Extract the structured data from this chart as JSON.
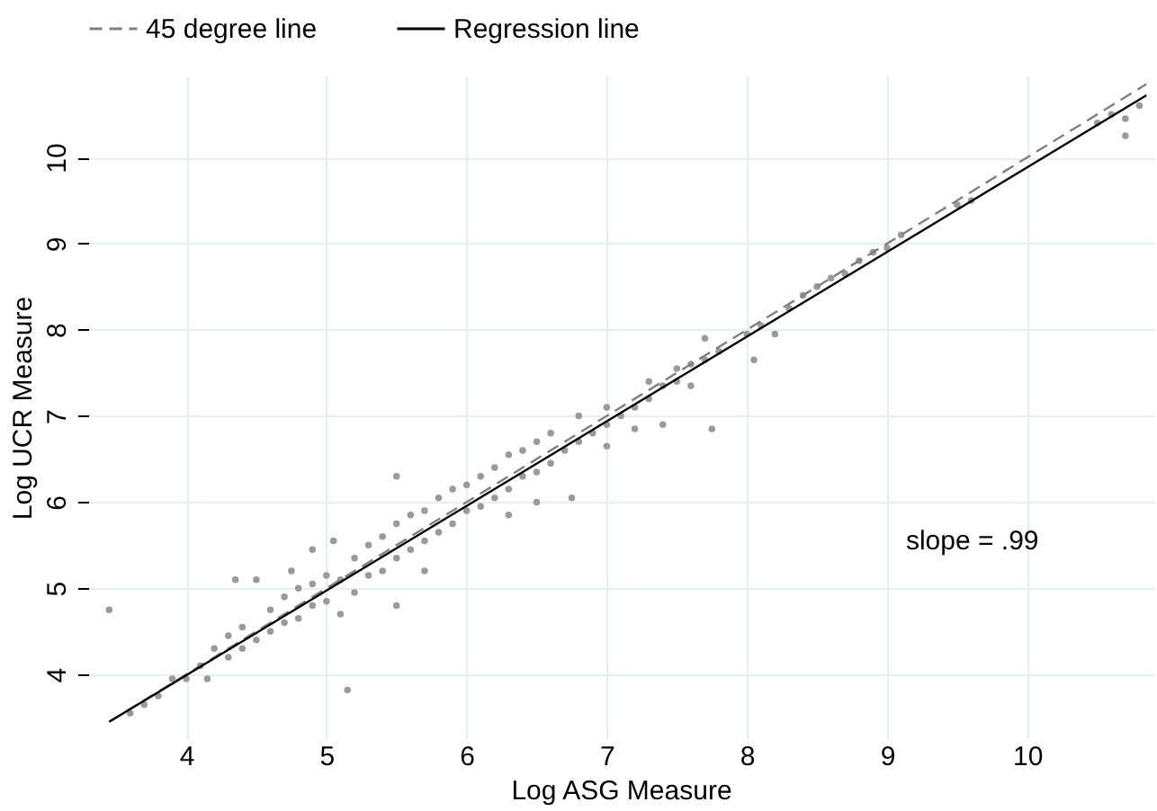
{
  "chart_data": {
    "type": "scatter",
    "xlabel": "Log ASG Measure",
    "ylabel": "Log UCR Measure",
    "xlim": [
      3.3,
      10.9
    ],
    "ylim": [
      3.25,
      10.95
    ],
    "xticks": [
      4,
      5,
      6,
      7,
      8,
      9,
      10
    ],
    "yticks": [
      4,
      5,
      6,
      7,
      8,
      9,
      10
    ],
    "grid": true,
    "legend": "top",
    "annotations": [
      "slope = .99"
    ],
    "series": [
      {
        "color": "#9a9a9a",
        "marker": "circle",
        "x": [
          3.45,
          3.6,
          3.7,
          3.8,
          3.9,
          4.0,
          4.1,
          4.15,
          4.2,
          4.3,
          4.3,
          4.4,
          4.4,
          4.5,
          4.5,
          4.35,
          4.6,
          4.6,
          4.7,
          4.7,
          4.75,
          4.8,
          4.8,
          4.9,
          4.9,
          4.9,
          5.0,
          5.0,
          5.05,
          5.1,
          5.1,
          5.2,
          5.2,
          5.15,
          5.3,
          5.3,
          5.4,
          5.4,
          5.5,
          5.5,
          5.5,
          5.5,
          5.6,
          5.6,
          5.7,
          5.7,
          5.7,
          5.8,
          5.8,
          5.9,
          5.9,
          6.0,
          6.0,
          6.1,
          6.1,
          6.2,
          6.2,
          6.3,
          6.3,
          6.3,
          6.4,
          6.4,
          6.5,
          6.5,
          6.5,
          6.6,
          6.6,
          6.7,
          6.75,
          6.8,
          6.8,
          6.9,
          7.0,
          7.0,
          7.0,
          7.1,
          7.2,
          7.2,
          7.3,
          7.3,
          7.4,
          7.4,
          7.5,
          7.5,
          7.6,
          7.6,
          7.7,
          7.75,
          7.7,
          7.8,
          8.0,
          8.05,
          8.1,
          8.2,
          8.3,
          8.4,
          8.5,
          8.6,
          8.7,
          8.8,
          8.9,
          9.0,
          9.1,
          9.5,
          9.6,
          10.5,
          10.6,
          10.7,
          10.7,
          10.8
        ],
        "values": [
          4.75,
          3.55,
          3.65,
          3.75,
          3.95,
          3.95,
          4.1,
          3.95,
          4.3,
          4.2,
          4.45,
          4.3,
          4.55,
          4.4,
          5.1,
          5.1,
          4.5,
          4.75,
          4.6,
          4.9,
          5.2,
          4.65,
          5.0,
          4.8,
          5.45,
          5.05,
          4.85,
          5.15,
          5.55,
          4.7,
          5.1,
          4.95,
          5.35,
          3.82,
          5.15,
          5.5,
          5.2,
          5.6,
          5.35,
          5.75,
          4.8,
          6.3,
          5.45,
          5.85,
          5.55,
          5.9,
          5.2,
          5.65,
          6.05,
          5.75,
          6.15,
          5.9,
          6.2,
          5.95,
          6.3,
          6.05,
          6.4,
          6.15,
          6.55,
          5.85,
          6.3,
          6.6,
          6.35,
          6.7,
          6.0,
          6.45,
          6.8,
          6.6,
          6.05,
          6.7,
          7.0,
          6.8,
          6.9,
          7.1,
          6.65,
          7.0,
          7.1,
          6.85,
          7.2,
          7.4,
          6.9,
          7.35,
          7.4,
          7.55,
          7.6,
          7.35,
          7.65,
          6.85,
          7.9,
          7.75,
          7.95,
          7.65,
          8.05,
          7.95,
          8.25,
          8.4,
          8.5,
          8.6,
          8.65,
          8.8,
          8.9,
          8.95,
          9.1,
          9.45,
          9.5,
          10.4,
          10.5,
          10.45,
          10.25,
          10.6
        ]
      },
      {
        "type": "line",
        "name": "45 degree line",
        "color": "#7f7f7f",
        "line_style": "dashed",
        "x": [
          3.45,
          10.85
        ],
        "values": [
          3.45,
          10.85
        ]
      },
      {
        "type": "line",
        "name": "Regression line",
        "color": "#000000",
        "line_style": "solid",
        "x": [
          3.45,
          10.85
        ],
        "values": [
          3.45,
          10.72
        ]
      }
    ]
  }
}
